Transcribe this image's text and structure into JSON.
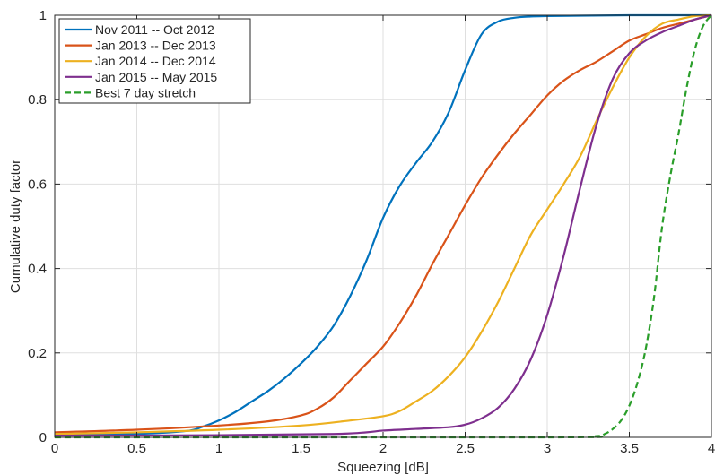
{
  "chart_data": {
    "type": "line",
    "title": "",
    "xlabel": "Squeezing [dB]",
    "ylabel": "Cumulative duty factor",
    "xlim": [
      0,
      4
    ],
    "ylim": [
      0,
      1
    ],
    "grid": true,
    "legend_position": "top-left",
    "xticks": [
      0,
      0.5,
      1,
      1.5,
      2,
      2.5,
      3,
      3.5,
      4
    ],
    "xtick_labels": [
      "0",
      "0.5",
      "1",
      "1.5",
      "2",
      "2.5",
      "3",
      "3.5",
      "4"
    ],
    "yticks": [
      0,
      0.2,
      0.4,
      0.6,
      0.8,
      1
    ],
    "ytick_labels": [
      "0",
      "0.2",
      "0.4",
      "0.6",
      "0.8",
      "1"
    ],
    "series": [
      {
        "name": "Nov 2011 -- Oct 2012",
        "color": "#0072bd",
        "style": "solid",
        "x": [
          0,
          0.5,
          0.8,
          0.9,
          1.0,
          1.1,
          1.2,
          1.3,
          1.4,
          1.5,
          1.6,
          1.7,
          1.8,
          1.9,
          2.0,
          2.1,
          2.2,
          2.3,
          2.4,
          2.5,
          2.6,
          2.7,
          2.8,
          2.9,
          3.0,
          3.2,
          3.5,
          4.0
        ],
        "y": [
          0.005,
          0.008,
          0.015,
          0.025,
          0.04,
          0.06,
          0.085,
          0.11,
          0.14,
          0.175,
          0.215,
          0.265,
          0.335,
          0.42,
          0.52,
          0.595,
          0.65,
          0.7,
          0.77,
          0.87,
          0.955,
          0.985,
          0.994,
          0.997,
          0.998,
          0.999,
          1.0,
          1.0
        ]
      },
      {
        "name": "Jan 2013 -- Dec 2013",
        "color": "#d95319",
        "style": "solid",
        "x": [
          0,
          0.5,
          1.0,
          1.3,
          1.5,
          1.6,
          1.7,
          1.8,
          1.9,
          2.0,
          2.1,
          2.2,
          2.3,
          2.4,
          2.5,
          2.6,
          2.7,
          2.8,
          2.9,
          3.0,
          3.1,
          3.2,
          3.3,
          3.4,
          3.5,
          3.6,
          3.7,
          3.8,
          3.9,
          4.0
        ],
        "y": [
          0.012,
          0.018,
          0.028,
          0.038,
          0.052,
          0.068,
          0.095,
          0.135,
          0.175,
          0.215,
          0.27,
          0.335,
          0.41,
          0.48,
          0.55,
          0.615,
          0.67,
          0.72,
          0.765,
          0.81,
          0.845,
          0.87,
          0.89,
          0.915,
          0.94,
          0.955,
          0.97,
          0.98,
          0.99,
          1.0
        ]
      },
      {
        "name": "Jan 2014 -- Dec 2014",
        "color": "#edb120",
        "style": "solid",
        "x": [
          0,
          0.5,
          1.0,
          1.5,
          1.8,
          2.0,
          2.1,
          2.2,
          2.3,
          2.4,
          2.5,
          2.6,
          2.7,
          2.8,
          2.9,
          3.0,
          3.1,
          3.2,
          3.3,
          3.4,
          3.5,
          3.6,
          3.7,
          3.8,
          3.9,
          4.0
        ],
        "y": [
          0.008,
          0.012,
          0.018,
          0.028,
          0.04,
          0.05,
          0.062,
          0.085,
          0.11,
          0.145,
          0.19,
          0.25,
          0.32,
          0.4,
          0.48,
          0.54,
          0.6,
          0.665,
          0.75,
          0.83,
          0.9,
          0.95,
          0.98,
          0.99,
          0.998,
          1.0
        ]
      },
      {
        "name": "Jan 2015 -- May 2015",
        "color": "#7e2f8e",
        "style": "solid",
        "x": [
          0,
          1.0,
          1.7,
          1.9,
          2.0,
          2.2,
          2.4,
          2.5,
          2.6,
          2.7,
          2.8,
          2.9,
          3.0,
          3.1,
          3.2,
          3.3,
          3.4,
          3.5,
          3.6,
          3.7,
          3.8,
          3.9,
          4.0
        ],
        "y": [
          0.004,
          0.005,
          0.008,
          0.012,
          0.016,
          0.02,
          0.024,
          0.03,
          0.045,
          0.07,
          0.115,
          0.185,
          0.29,
          0.43,
          0.59,
          0.74,
          0.85,
          0.91,
          0.94,
          0.96,
          0.975,
          0.99,
          1.0
        ]
      },
      {
        "name": "Best 7 day stretch",
        "color": "#2a9e2a",
        "style": "dashed",
        "x": [
          0,
          3.0,
          3.3,
          3.35,
          3.4,
          3.45,
          3.5,
          3.55,
          3.6,
          3.65,
          3.7,
          3.75,
          3.8,
          3.85,
          3.9,
          3.95,
          4.0
        ],
        "y": [
          0,
          0,
          0.003,
          0.008,
          0.02,
          0.04,
          0.075,
          0.13,
          0.21,
          0.33,
          0.5,
          0.62,
          0.72,
          0.83,
          0.92,
          0.975,
          1.0
        ]
      }
    ]
  }
}
